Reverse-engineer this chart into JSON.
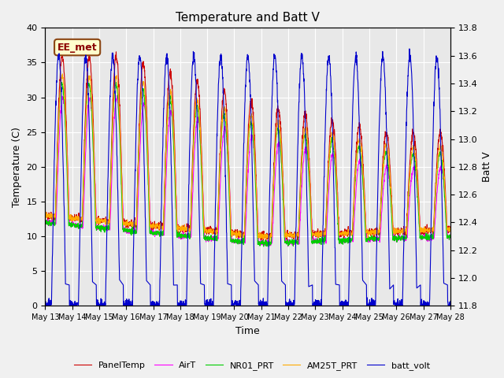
{
  "title": "Temperature and Batt V",
  "xlabel": "Time",
  "ylabel_left": "Temperature (C)",
  "ylabel_right": "Batt V",
  "annotation": "EE_met",
  "n_days": 15,
  "ylim_left": [
    0,
    40
  ],
  "ylim_right": [
    11.8,
    13.8
  ],
  "xtick_labels": [
    "May 13",
    "May 14",
    "May 15",
    "May 16",
    "May 17",
    "May 18",
    "May 19",
    "May 20",
    "May 21",
    "May 22",
    "May 23",
    "May 24",
    "May 25",
    "May 26",
    "May 27",
    "May 28"
  ],
  "legend_entries": [
    "PanelTemp",
    "AirT",
    "NR01_PRT",
    "AM25T_PRT",
    "batt_volt"
  ],
  "legend_colors": [
    "#cc0000",
    "#ff00ff",
    "#00cc00",
    "#ffaa00",
    "#0000cc"
  ],
  "background_color": "#e8e8e8",
  "title_fontsize": 11,
  "axis_fontsize": 9,
  "tick_fontsize": 8
}
